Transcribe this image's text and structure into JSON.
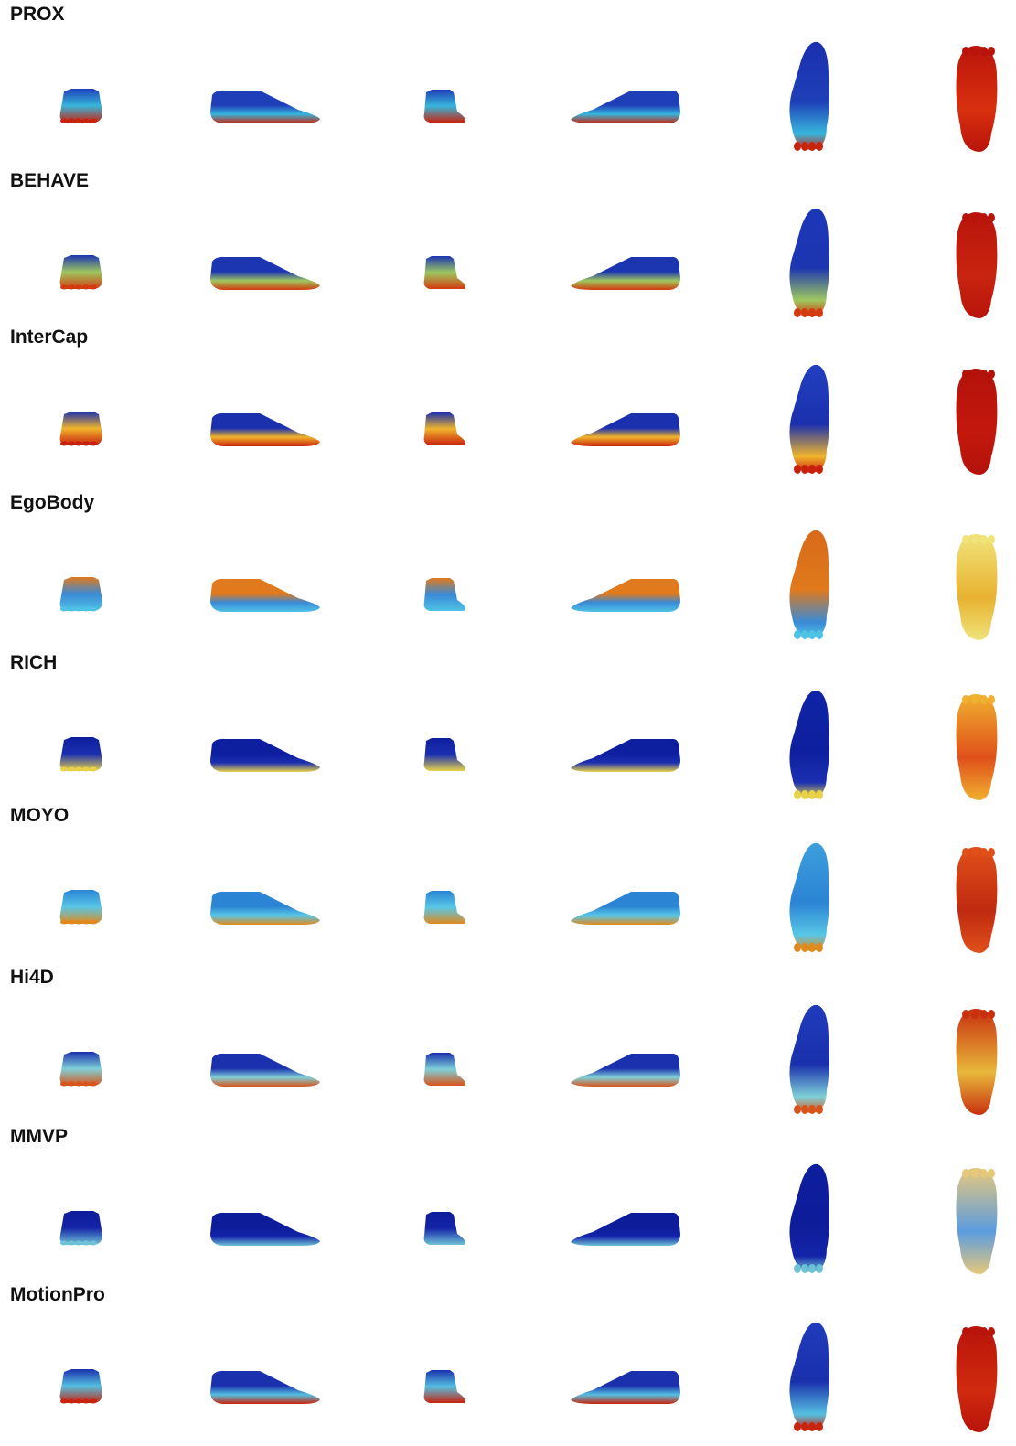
{
  "figure": {
    "rows": [
      {
        "label": "PROX",
        "top": "#1e3fb8",
        "upper": "#37b6dc",
        "sole": "#c8230d",
        "plantar_a": "#b9140b",
        "plantar_b": "#d8300e",
        "dorsal": "#1b2fae"
      },
      {
        "label": "BEHAVE",
        "top": "#1c35b0",
        "upper": "#9ec860",
        "sole": "#d33a0e",
        "plantar_a": "#b8140b",
        "plantar_b": "#c92410",
        "dorsal": "#1b37b9"
      },
      {
        "label": "InterCap",
        "top": "#1b30ad",
        "upper": "#f0b52c",
        "sole": "#c8200d",
        "plantar_a": "#b3120b",
        "plantar_b": "#c3180c",
        "dorsal": "#2140c0"
      },
      {
        "label": "EgoBody",
        "top": "#e07a1c",
        "upper": "#3a8ad6",
        "sole": "#4fc3e5",
        "plantar_a": "#efe37a",
        "plantar_b": "#e8b230",
        "dorsal": "#d86a1a"
      },
      {
        "label": "RICH",
        "top": "#0d1f9e",
        "upper": "#1a2fb0",
        "sole": "#e8d24a",
        "plantar_a": "#f0b030",
        "plantar_b": "#e0501a",
        "dorsal": "#0f24a6"
      },
      {
        "label": "MOYO",
        "top": "#2b84d4",
        "upper": "#58c7e6",
        "sole": "#e08a1e",
        "plantar_a": "#e0501a",
        "plantar_b": "#c02a10",
        "dorsal": "#3d9edc"
      },
      {
        "label": "Hi4D",
        "top": "#1a30ad",
        "upper": "#7fd0d8",
        "sole": "#d8541a",
        "plantar_a": "#c8300f",
        "plantar_b": "#e8b83a",
        "dorsal": "#1f3cba"
      },
      {
        "label": "MMVP",
        "top": "#0d1c99",
        "upper": "#1424a8",
        "sole": "#6fc2d6",
        "plantar_a": "#e6c87a",
        "plantar_b": "#5c9ce0",
        "dorsal": "#0d1e9e"
      },
      {
        "label": "MotionPro",
        "top": "#1a30ad",
        "upper": "#55c0e0",
        "sole": "#c8230d",
        "plantar_a": "#b8140b",
        "plantar_b": "#d02a0e",
        "dorsal": "#1f3cba"
      }
    ]
  }
}
